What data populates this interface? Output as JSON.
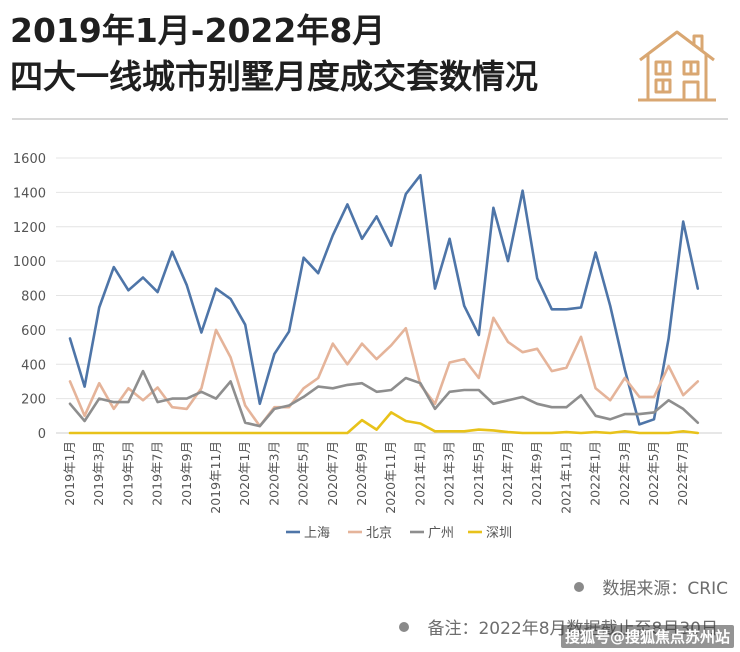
{
  "header": {
    "title_line1": "2019年1月-2022年8月",
    "title_line2": "四大一线城市别墅月度成交套数情况",
    "icon": "house-icon",
    "icon_color": "#D9A772"
  },
  "chart_data": {
    "type": "line",
    "title": "",
    "xlabel": "",
    "ylabel": "",
    "ylim": [
      0,
      1600
    ],
    "yticks": [
      0,
      200,
      400,
      600,
      800,
      1000,
      1200,
      1400,
      1600
    ],
    "grid": "horizontal",
    "legend_position": "bottom-center",
    "x": [
      "2019年1月",
      "2019年2月",
      "2019年3月",
      "2019年4月",
      "2019年5月",
      "2019年6月",
      "2019年7月",
      "2019年8月",
      "2019年9月",
      "2019年10月",
      "2019年11月",
      "2019年12月",
      "2020年1月",
      "2020年2月",
      "2020年3月",
      "2020年4月",
      "2020年5月",
      "2020年6月",
      "2020年7月",
      "2020年8月",
      "2020年9月",
      "2020年10月",
      "2020年11月",
      "2020年12月",
      "2021年1月",
      "2021年2月",
      "2021年3月",
      "2021年4月",
      "2021年5月",
      "2021年6月",
      "2021年7月",
      "2021年8月",
      "2021年9月",
      "2021年10月",
      "2021年11月",
      "2021年12月",
      "2022年1月",
      "2022年2月",
      "2022年3月",
      "2022年4月",
      "2022年5月",
      "2022年6月",
      "2022年7月",
      "2022年8月"
    ],
    "tick_labels": [
      "2019年1月",
      "2019年3月",
      "2019年5月",
      "2019年7月",
      "2019年9月",
      "2019年11月",
      "2020年1月",
      "2020年3月",
      "2020年5月",
      "2020年7月",
      "2020年9月",
      "2020年11月",
      "2021年1月",
      "2021年3月",
      "2021年5月",
      "2021年7月",
      "2021年9月",
      "2021年11月",
      "2022年1月",
      "2022年3月",
      "2022年5月",
      "2022年7月"
    ],
    "series": [
      {
        "name": "上海",
        "color": "#4E75A8",
        "values": [
          550,
          270,
          730,
          965,
          830,
          905,
          820,
          1055,
          860,
          585,
          840,
          780,
          630,
          170,
          460,
          590,
          1020,
          930,
          1150,
          1330,
          1130,
          1260,
          1090,
          1390,
          1500,
          840,
          1130,
          740,
          570,
          1310,
          1000,
          1410,
          900,
          720,
          720,
          730,
          1050,
          740,
          370,
          50,
          80,
          550,
          1230,
          840
        ]
      },
      {
        "name": "北京",
        "color": "#E5B49A",
        "values": [
          300,
          100,
          290,
          140,
          260,
          190,
          265,
          150,
          140,
          260,
          600,
          440,
          160,
          40,
          150,
          150,
          260,
          320,
          520,
          400,
          520,
          430,
          510,
          610,
          280,
          170,
          410,
          430,
          320,
          670,
          530,
          470,
          490,
          360,
          380,
          560,
          260,
          190,
          320,
          210,
          210,
          390,
          220,
          300
        ]
      },
      {
        "name": "广州",
        "color": "#8E8E8E",
        "values": [
          170,
          70,
          200,
          180,
          180,
          360,
          180,
          200,
          200,
          240,
          200,
          300,
          60,
          40,
          140,
          160,
          210,
          270,
          260,
          280,
          290,
          240,
          250,
          320,
          290,
          140,
          240,
          250,
          250,
          170,
          190,
          210,
          170,
          150,
          150,
          220,
          100,
          80,
          110,
          110,
          120,
          190,
          140,
          60
        ]
      },
      {
        "name": "深圳",
        "color": "#E8C21A",
        "values": [
          0,
          0,
          0,
          0,
          0,
          0,
          0,
          0,
          0,
          0,
          0,
          0,
          0,
          0,
          0,
          0,
          0,
          0,
          0,
          0,
          75,
          20,
          120,
          70,
          55,
          10,
          10,
          10,
          20,
          15,
          5,
          0,
          0,
          0,
          5,
          0,
          5,
          0,
          10,
          0,
          0,
          0,
          10,
          0
        ]
      }
    ]
  },
  "notes": {
    "source": "数据来源：CRIC",
    "remark": "备注：2022年8月数据截止至8月30日"
  },
  "watermark": "搜狐号@搜狐焦点苏州站"
}
